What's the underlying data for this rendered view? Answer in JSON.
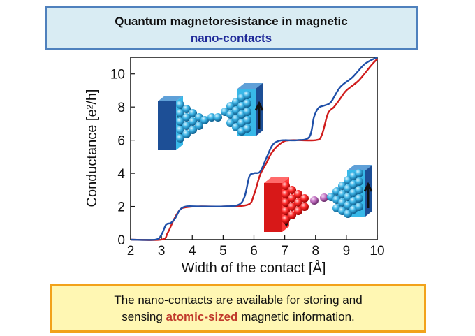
{
  "header": {
    "title_line1": "Quantum magnetoresistance   in magnetic",
    "title_line2": "nano-contacts"
  },
  "caption": {
    "line1": "The nano-contacts are available for storing and",
    "line2_before": "sensing ",
    "line2_highlight": "atomic-sized",
    "line2_after": " magnetic information."
  },
  "colors": {
    "parallel_series": "#1f4fa8",
    "antiparallel_series": "#d01c1c",
    "title_border": "#4f81bd",
    "caption_border": "#f2a21b"
  },
  "chart_data": {
    "type": "line",
    "title": "",
    "xlabel": "Width of the contact [Å]",
    "ylabel": "Conductance [e²/h]",
    "xlim": [
      2,
      10
    ],
    "ylim": [
      0,
      11
    ],
    "xticks": [
      2,
      3,
      4,
      5,
      6,
      7,
      8,
      9,
      10
    ],
    "yticks": [
      0,
      2,
      4,
      6,
      8,
      10
    ],
    "grid": false,
    "legend": "none",
    "insets": [
      "parallel-magnetization-contact",
      "antiparallel-magnetization-contact"
    ],
    "series": [
      {
        "color": "blue",
        "x": [
          2.0,
          2.8,
          3.0,
          3.15,
          3.3,
          3.45,
          3.6,
          3.8,
          4.2,
          5.0,
          5.5,
          5.7,
          5.85,
          6.0,
          6.2,
          6.4,
          6.6,
          6.8,
          7.0,
          7.4,
          7.8,
          7.95,
          8.1,
          8.3,
          8.5,
          8.8,
          9.2,
          9.6,
          10.0
        ],
        "y": [
          0.0,
          0.0,
          0.3,
          0.9,
          1.0,
          1.3,
          1.8,
          2.0,
          2.0,
          2.0,
          2.1,
          2.6,
          3.8,
          4.0,
          4.1,
          4.9,
          5.7,
          5.95,
          6.0,
          6.0,
          6.2,
          7.4,
          7.95,
          8.1,
          8.3,
          9.2,
          9.8,
          10.6,
          11.0
        ]
      },
      {
        "color": "red",
        "x": [
          2.0,
          3.0,
          3.2,
          3.4,
          3.6,
          3.8,
          4.2,
          5.0,
          5.8,
          6.0,
          6.2,
          6.4,
          6.6,
          6.9,
          7.2,
          8.0,
          8.2,
          8.4,
          8.6,
          8.8,
          9.0,
          9.4,
          9.8,
          10.0
        ],
        "y": [
          0.0,
          0.0,
          0.4,
          1.2,
          1.8,
          1.95,
          2.0,
          2.0,
          2.1,
          2.7,
          3.9,
          4.6,
          5.3,
          5.85,
          6.0,
          6.0,
          6.3,
          7.6,
          8.0,
          8.5,
          9.0,
          9.6,
          10.5,
          10.9
        ]
      }
    ]
  }
}
